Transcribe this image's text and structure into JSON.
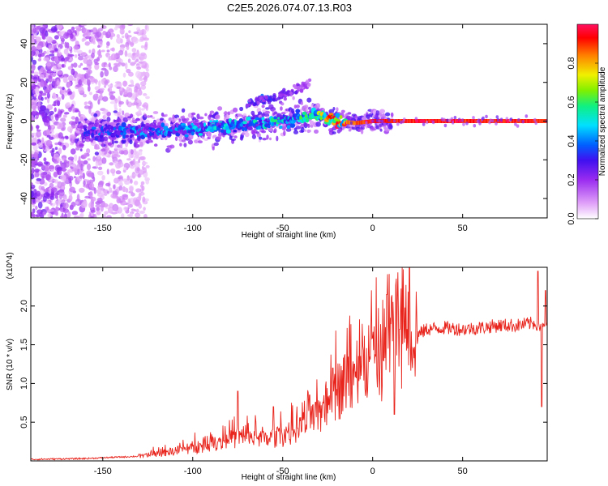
{
  "title": "C2E5.2026.074.07.13.R03",
  "colors": {
    "snr_line": "#e8241c",
    "frame": "#000000",
    "colormap": [
      "#ffffff",
      "#e0a0f8",
      "#9a2cf0",
      "#4010f0",
      "#0060ff",
      "#00e0ff",
      "#10f080",
      "#80f000",
      "#f0f000",
      "#ff8000",
      "#ff0000",
      "#ff1060"
    ]
  },
  "chart_data": [
    {
      "type": "heatmap",
      "name": "spectrogram",
      "xlabel": "Height of straight line (km)",
      "ylabel": "Frequency (Hz)",
      "xlim": [
        -190,
        97
      ],
      "ylim": [
        -50,
        50
      ],
      "x_ticks": [
        -150,
        -100,
        -50,
        0,
        50
      ],
      "x_tick_labels": [
        "-150",
        "-100",
        "-50",
        "0",
        "50"
      ],
      "y_ticks": [
        -40,
        -20,
        0,
        20,
        40
      ],
      "y_tick_labels": [
        "-40",
        "-20",
        "0",
        "20",
        "40"
      ],
      "colorbar": {
        "label": "Normalized spectral amplitude",
        "range": [
          0,
          1
        ],
        "ticks": [
          0.0,
          0.2,
          0.4,
          0.6,
          0.8
        ],
        "tick_labels": [
          "0.0",
          "0.2",
          "0.4",
          "0.6",
          "0.8"
        ]
      },
      "ridge": {
        "x": [
          -160,
          -140,
          -120,
          -100,
          -80,
          -60,
          -40,
          -30,
          -25,
          -20,
          -10,
          0,
          10,
          20,
          40,
          60,
          80,
          97
        ],
        "freq": [
          -6,
          -5,
          -5,
          -4,
          -2,
          -1,
          2,
          3,
          1,
          0,
          -1,
          0,
          0,
          0,
          0,
          0,
          0,
          0
        ],
        "amplitude": [
          0.3,
          0.35,
          0.35,
          0.4,
          0.42,
          0.45,
          0.5,
          0.55,
          0.7,
          0.8,
          0.9,
          0.95,
          0.95,
          0.95,
          0.95,
          0.95,
          0.95,
          0.95
        ]
      },
      "secondary_branch": {
        "x": [
          -70,
          -55,
          -45,
          -35
        ],
        "freq": [
          9,
          12,
          15,
          20
        ],
        "amplitude": [
          0.35,
          0.3,
          0.25,
          0.15
        ]
      },
      "noise_region_x": [
        -190,
        -130
      ]
    },
    {
      "type": "line",
      "name": "snr",
      "xlabel": "Height of straight line (km)",
      "ylabel": "SNR (10 * v/v)",
      "y_multiplier_label": "(x10^4)",
      "xlim": [
        -190,
        97
      ],
      "ylim": [
        0,
        2.5
      ],
      "x_ticks": [
        -150,
        -100,
        -50,
        0,
        50
      ],
      "x_tick_labels": [
        "-150",
        "-100",
        "-50",
        "0",
        "50"
      ],
      "y_ticks": [
        0.5,
        1.0,
        1.5,
        2.0
      ],
      "y_tick_labels": [
        "0.5",
        "1.0",
        "1.5",
        "2.0"
      ],
      "envelope": {
        "x": [
          -190,
          -160,
          -130,
          -120,
          -100,
          -80,
          -70,
          -60,
          -50,
          -40,
          -30,
          -25,
          -20,
          -15,
          -10,
          0,
          10,
          20,
          30,
          40,
          50,
          60,
          70,
          80,
          90,
          97
        ],
        "y": [
          0.01,
          0.02,
          0.05,
          0.08,
          0.15,
          0.25,
          0.28,
          0.25,
          0.3,
          0.4,
          0.55,
          0.7,
          0.85,
          0.95,
          1.0,
          1.15,
          1.35,
          1.55,
          1.7,
          1.72,
          1.7,
          1.72,
          1.75,
          1.75,
          1.78,
          1.7
        ]
      },
      "peaks": {
        "x": [
          -75,
          -55,
          -35,
          -22,
          -10,
          8,
          12,
          15,
          92,
          94,
          96
        ],
        "y": [
          0.9,
          0.7,
          0.85,
          1.2,
          1.25,
          2.15,
          0.6,
          1.7,
          2.45,
          0.7,
          2.2
        ]
      }
    }
  ]
}
